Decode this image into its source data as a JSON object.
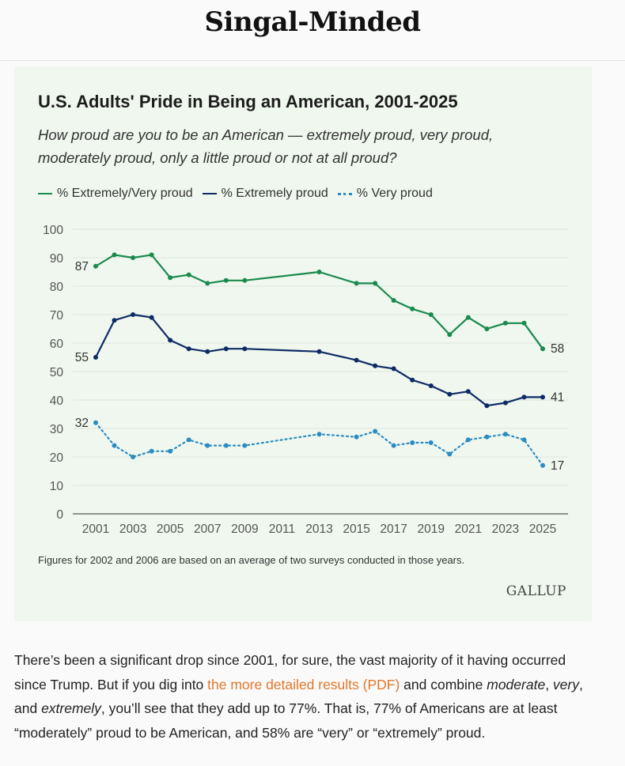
{
  "site": {
    "title": "Singal-Minded"
  },
  "chart": {
    "title": "U.S. Adults' Pride in Being an American, 2001-2025",
    "subtitle": "How proud are you to be an American — extremely proud, very proud, moderately proud, only a little proud or not at all proud?",
    "footnote": "Figures for 2002 and 2006 are based on an average of two surveys conducted in those years.",
    "source_logo": "GALLUP",
    "colors": {
      "green": "#1a8a4d",
      "navy": "#0e2a66",
      "blue": "#2b8cc4",
      "grid": "#dde6dc"
    }
  },
  "chart_data": {
    "type": "line",
    "title": "U.S. Adults' Pride in Being an American, 2001-2025",
    "xlabel": "",
    "ylabel": "",
    "ylim": [
      0,
      100
    ],
    "yticks": [
      0,
      10,
      20,
      30,
      40,
      50,
      60,
      70,
      80,
      90,
      100
    ],
    "xticks": [
      2001,
      2003,
      2005,
      2007,
      2009,
      2011,
      2013,
      2015,
      2017,
      2019,
      2021,
      2023,
      2025
    ],
    "grid": true,
    "legend_position": "top-left",
    "series": [
      {
        "name": "% Extremely/Very proud",
        "style": "solid",
        "color": "#1a8a4d",
        "x": [
          2001,
          2002,
          2003,
          2004,
          2005,
          2006,
          2007,
          2008,
          2009,
          2013,
          2015,
          2016,
          2017,
          2018,
          2019,
          2020,
          2021,
          2022,
          2023,
          2024,
          2025
        ],
        "values": [
          87,
          91,
          90,
          91,
          83,
          84,
          81,
          82,
          82,
          85,
          81,
          81,
          75,
          72,
          70,
          63,
          69,
          65,
          67,
          67,
          58
        ],
        "start_label": "87",
        "end_label": "58"
      },
      {
        "name": "% Extremely proud",
        "style": "solid",
        "color": "#0e2a66",
        "x": [
          2001,
          2002,
          2003,
          2004,
          2005,
          2006,
          2007,
          2008,
          2009,
          2013,
          2015,
          2016,
          2017,
          2018,
          2019,
          2020,
          2021,
          2022,
          2023,
          2024,
          2025
        ],
        "values": [
          55,
          68,
          70,
          69,
          61,
          58,
          57,
          58,
          58,
          57,
          54,
          52,
          51,
          47,
          45,
          42,
          43,
          38,
          39,
          41,
          41
        ],
        "start_label": "55",
        "end_label": "41"
      },
      {
        "name": "% Very proud",
        "style": "dotted",
        "color": "#2b8cc4",
        "x": [
          2001,
          2002,
          2003,
          2004,
          2005,
          2006,
          2007,
          2008,
          2009,
          2013,
          2015,
          2016,
          2017,
          2018,
          2019,
          2020,
          2021,
          2022,
          2023,
          2024,
          2025
        ],
        "values": [
          32,
          24,
          20,
          22,
          22,
          26,
          24,
          24,
          24,
          28,
          27,
          29,
          24,
          25,
          25,
          21,
          26,
          27,
          28,
          26,
          17
        ],
        "start_label": "32",
        "end_label": "17"
      }
    ]
  },
  "article": {
    "p1": "There’s been a significant drop since 2001, for sure, the vast majority of it having occurred since Trump. But if you dig into ",
    "link": "the more detailed results (PDF)",
    "p2": " and combine ",
    "em1": "moderate",
    "p3": ", ",
    "em2": "very",
    "p4": ", and ",
    "em3": "extremely",
    "p5": ", you’ll see that they add up to 77%. That is, 77% of Americans are at least “moderately” proud to be American, and 58% are “very” or “extremely” proud."
  }
}
